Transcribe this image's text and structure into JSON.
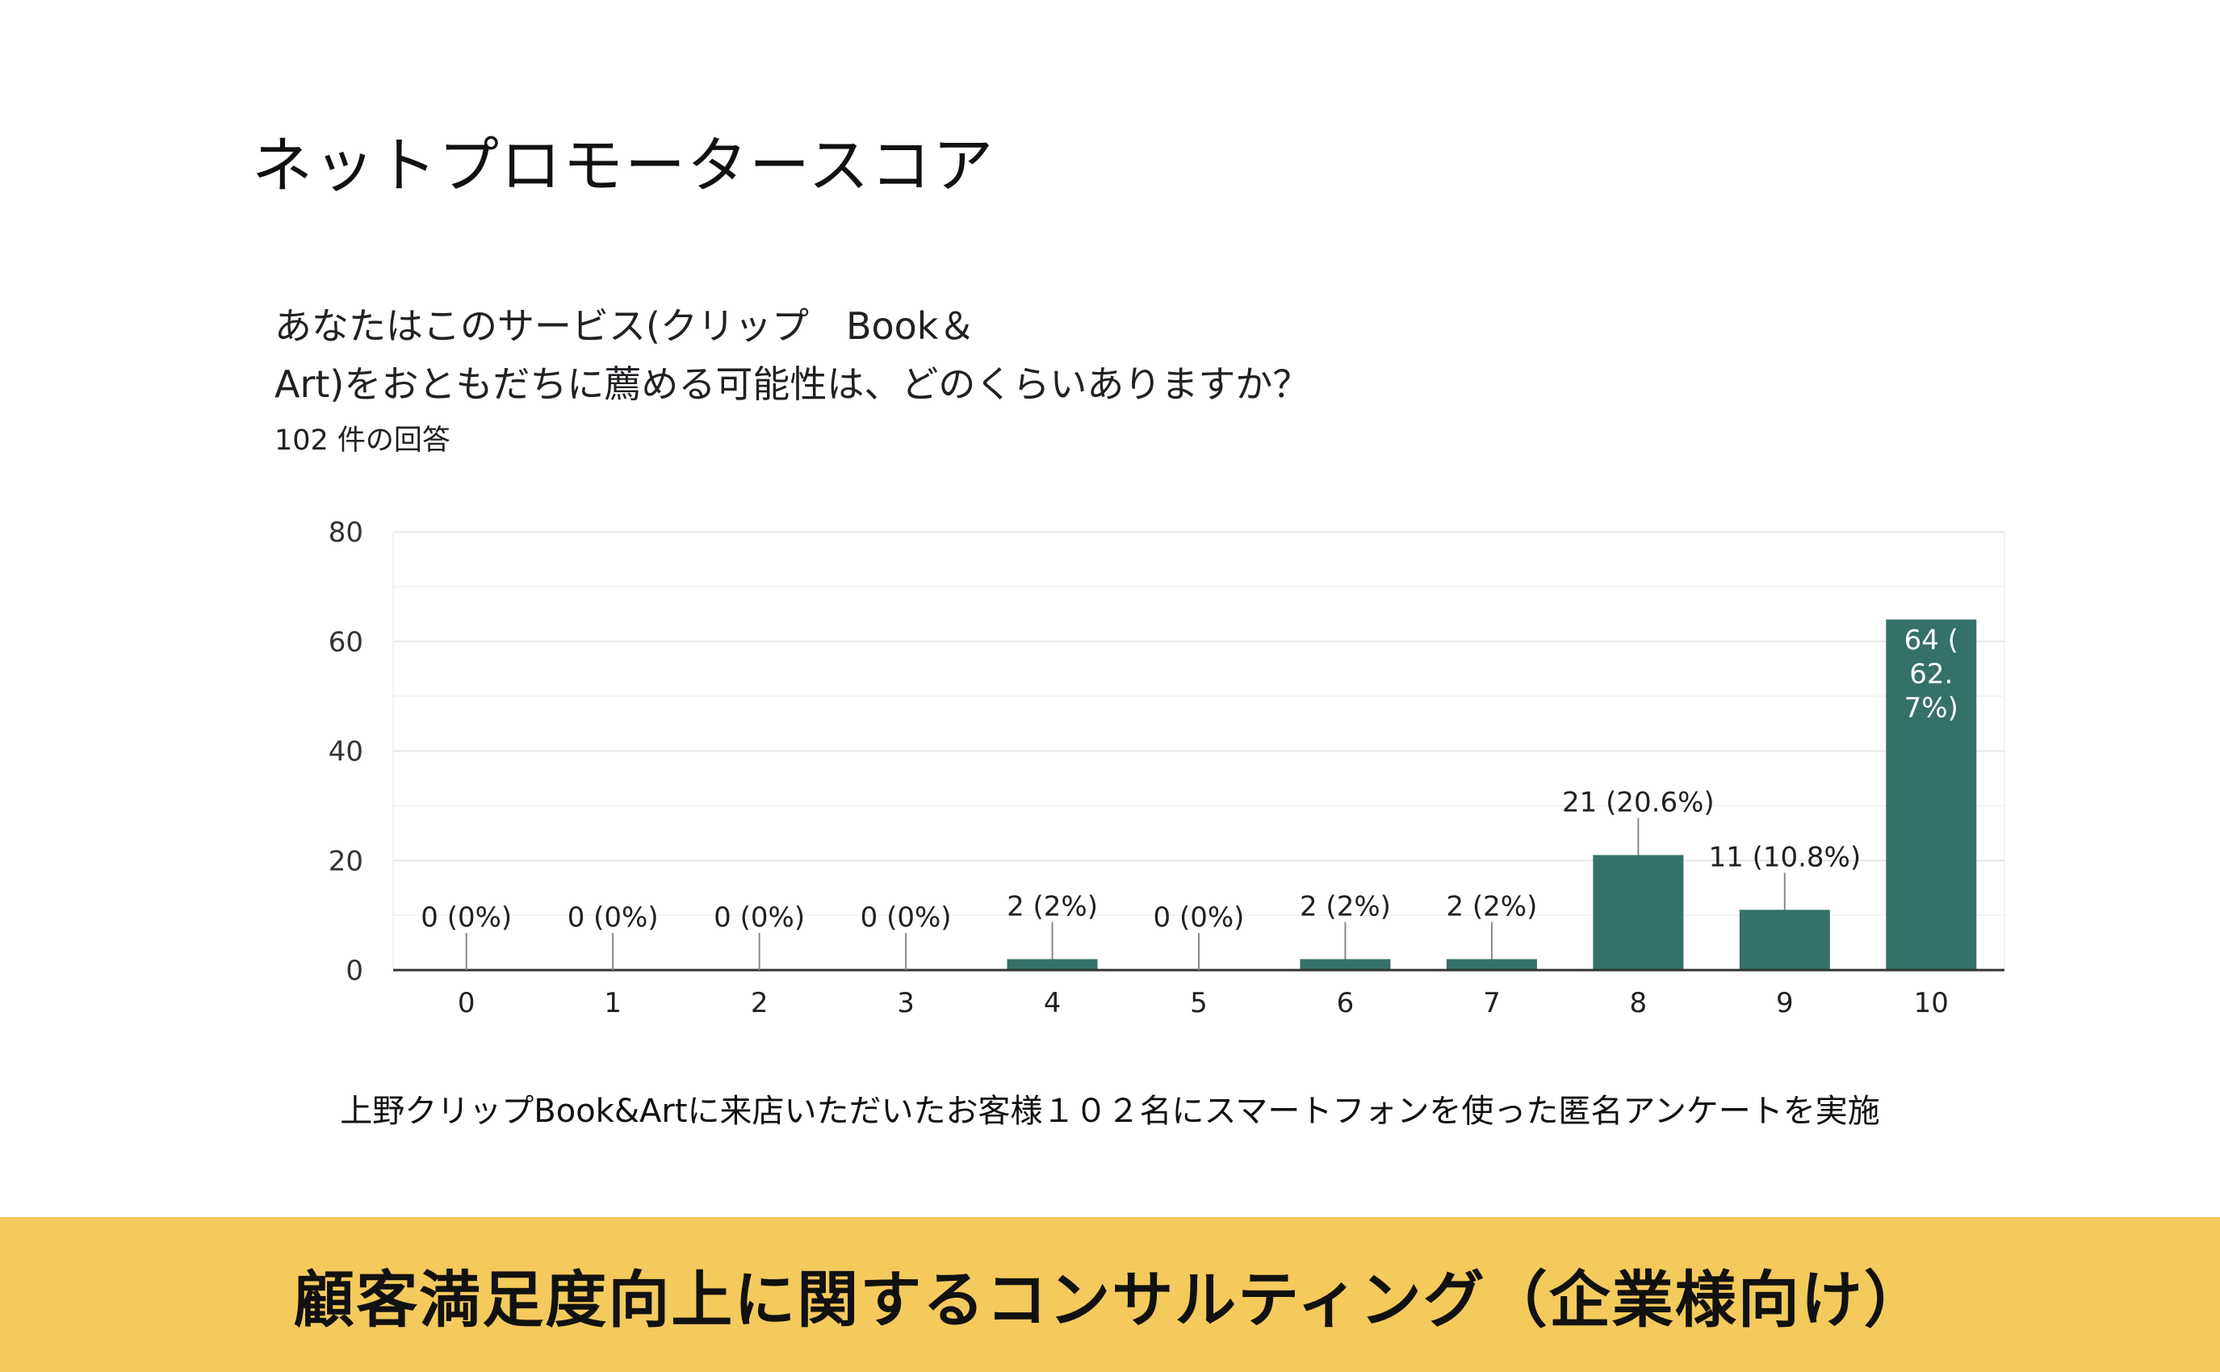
{
  "page": {
    "title": "ネットプロモータースコア",
    "caption": "上野クリップBook&Artに来店いただいたお客様１０２名にスマートフォンを使った匿名アンケートを実施",
    "banner": "顧客満足度向上に関するコンサルティング（企業様向け）"
  },
  "survey": {
    "question_line1": "あなたはこのサービス(クリップ　Book＆",
    "question_line2": "Art)をおともだちに薦める可能性は、どのくらいありますか？",
    "responses": "102 件の回答"
  },
  "colors": {
    "bar": "#357069",
    "axis": "#333333",
    "grid": "#e6e6e6",
    "minor_grid": "#f3f3f3",
    "banner": "#f4ca5c"
  },
  "chart_data": {
    "type": "bar",
    "categories": [
      "0",
      "1",
      "2",
      "3",
      "4",
      "5",
      "6",
      "7",
      "8",
      "9",
      "10"
    ],
    "values": [
      0,
      0,
      0,
      0,
      2,
      0,
      2,
      2,
      21,
      11,
      64
    ],
    "data_labels": [
      "0 (0%)",
      "0 (0%)",
      "0 (0%)",
      "0 (0%)",
      "2 (2%)",
      "0 (0%)",
      "2 (2%)",
      "2 (2%)",
      "21 (20.6%)",
      "11 (10.8%)",
      "64 (62.7%)"
    ],
    "inside_label_lines": [
      "64 (",
      "62.",
      "7%)"
    ],
    "yticks": [
      0,
      20,
      40,
      60,
      80
    ],
    "ylim": [
      0,
      80
    ],
    "title": "",
    "xlabel": "",
    "ylabel": "",
    "grid": true
  }
}
